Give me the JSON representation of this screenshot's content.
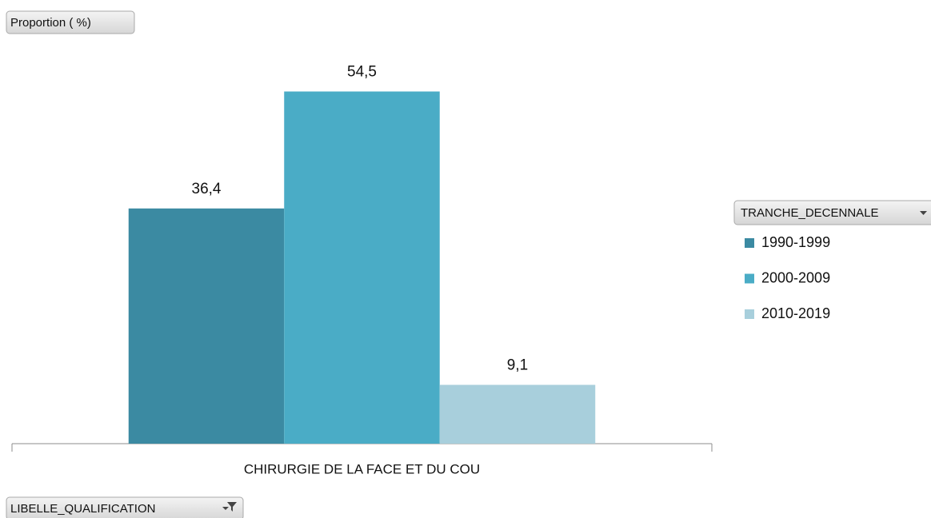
{
  "chart_data": {
    "type": "bar",
    "value_field": "Proportion ( %)",
    "axis_field": "LIBELLE_QUALIFICATION",
    "legend_title": "TRANCHE_DECENNALE",
    "categories": [
      "CHIRURGIE DE LA FACE ET DU COU"
    ],
    "series": [
      {
        "name": "1990-1999",
        "color": "#3b8aa2",
        "values": [
          36.4
        ],
        "value_labels": [
          "36,4"
        ]
      },
      {
        "name": "2000-2009",
        "color": "#4aacc6",
        "values": [
          54.5
        ],
        "value_labels": [
          "54,5"
        ]
      },
      {
        "name": "2010-2019",
        "color": "#a8cfdc",
        "values": [
          9.1
        ],
        "value_labels": [
          "9,1"
        ]
      }
    ],
    "ylim": [
      0,
      60
    ],
    "legend": "right"
  }
}
